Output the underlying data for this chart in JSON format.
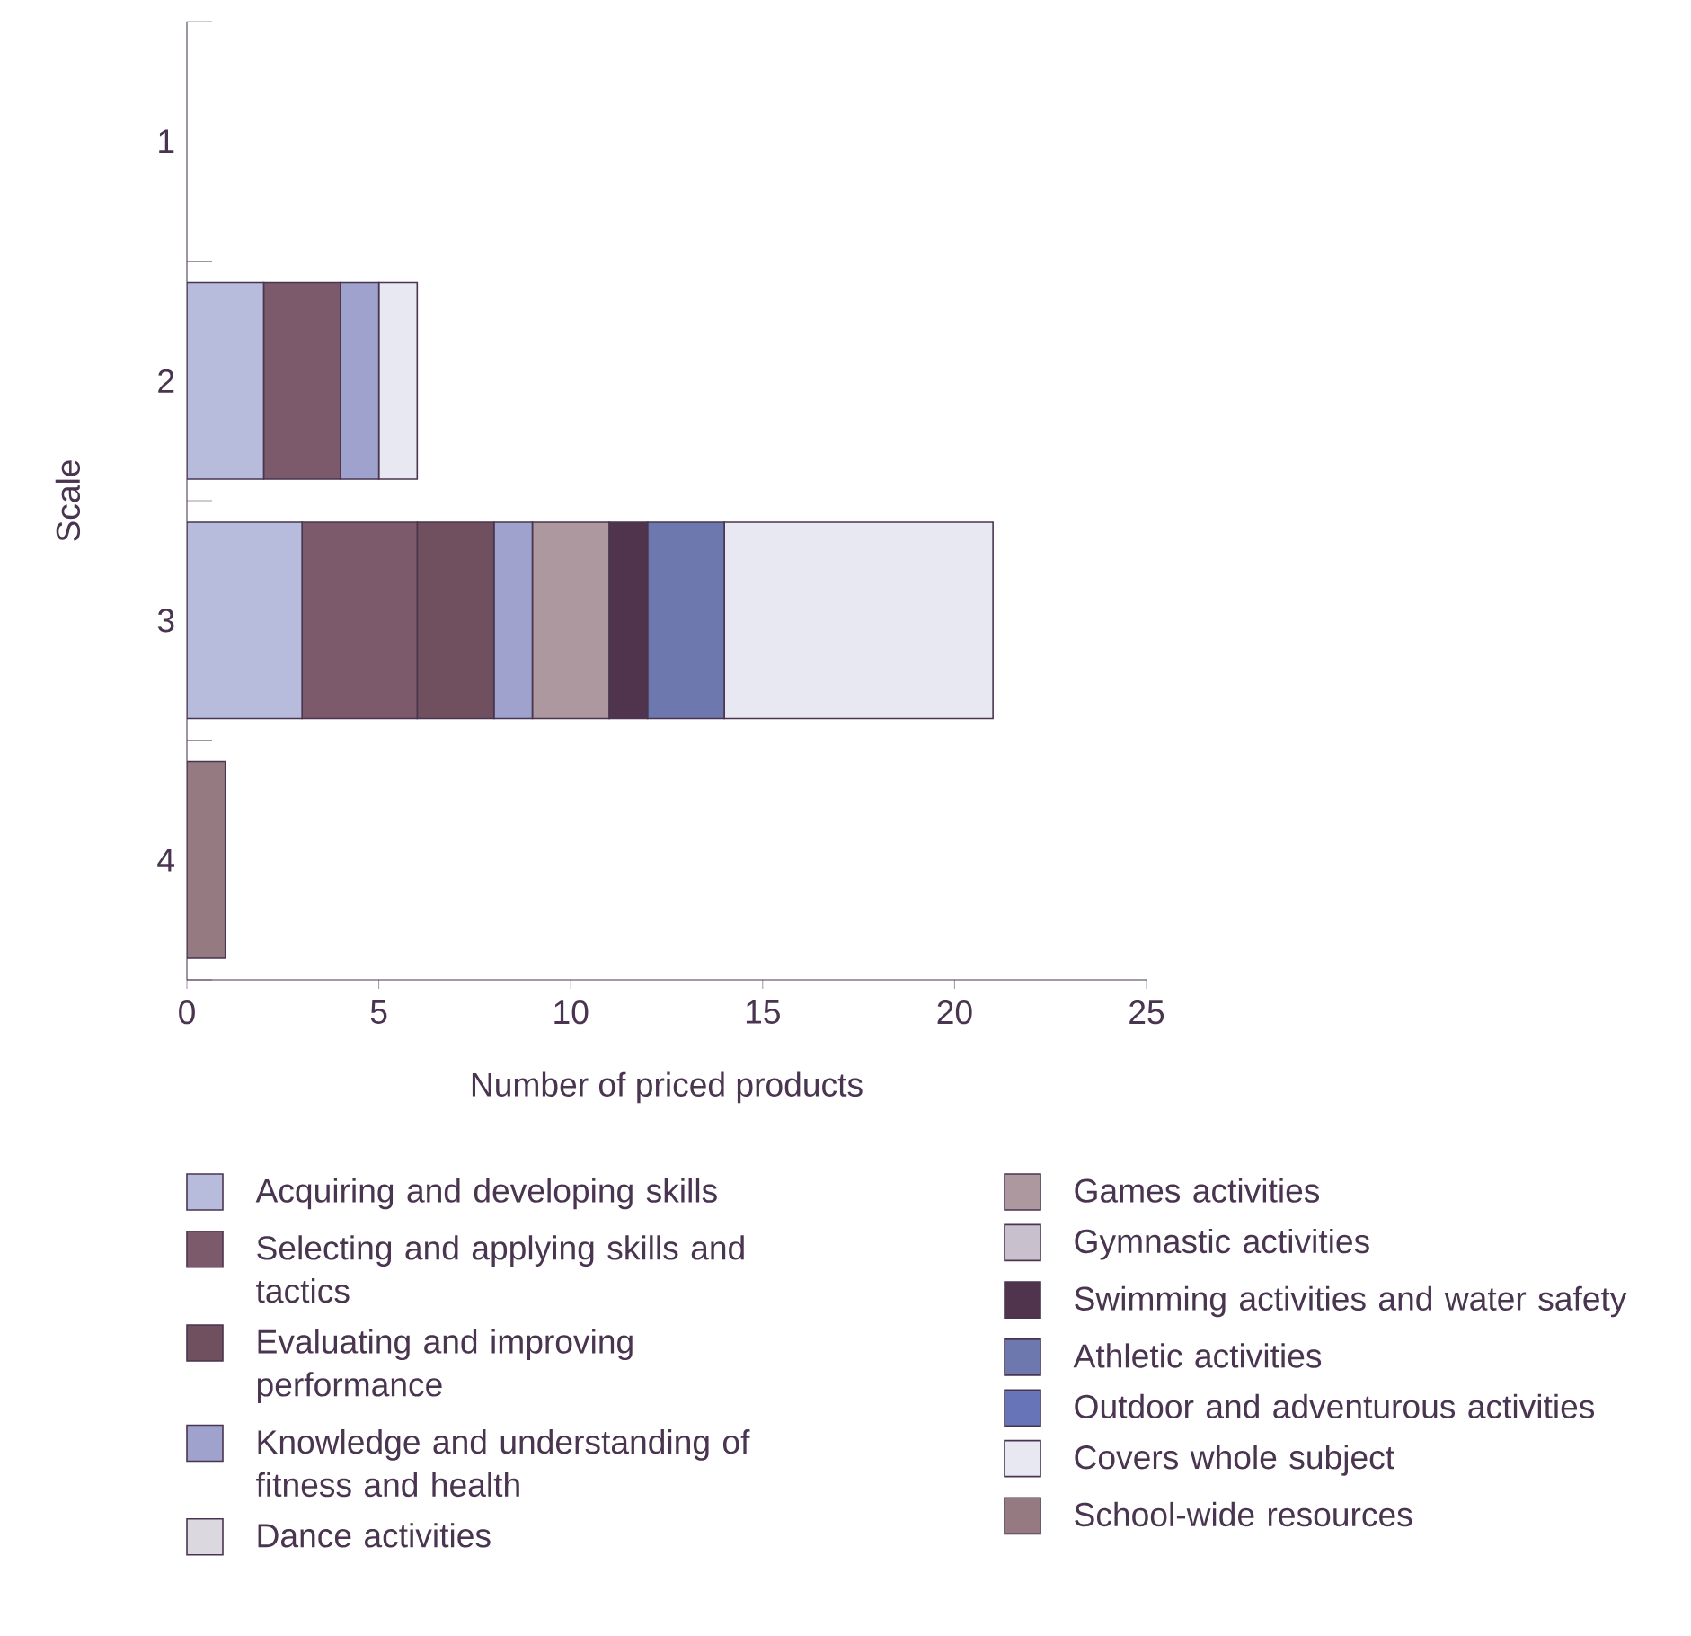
{
  "chart_data": {
    "type": "bar",
    "orientation": "horizontal",
    "stacked": true,
    "xlabel": "Number of priced products",
    "ylabel": "Scale",
    "categories": [
      "1",
      "2",
      "3",
      "4"
    ],
    "xlim": [
      0,
      25
    ],
    "xticks": [
      0,
      5,
      10,
      15,
      20,
      25
    ],
    "legend": "bottom",
    "series": [
      {
        "name": "Acquiring and developing skills",
        "color": "#b8bcdc",
        "values": [
          0,
          2,
          3,
          0
        ]
      },
      {
        "name": "Selecting and applying skills and tactics",
        "color": "#7c5a6c",
        "values": [
          0,
          2,
          3,
          0
        ]
      },
      {
        "name": "Evaluating and improving performance",
        "color": "#70505f",
        "values": [
          0,
          0,
          2,
          0
        ]
      },
      {
        "name": "Knowledge and understanding of fitness and health",
        "color": "#9ea2cc",
        "values": [
          0,
          1,
          1,
          0
        ]
      },
      {
        "name": "Dance activities",
        "color": "#dcd8e0",
        "values": [
          0,
          0,
          0,
          0
        ]
      },
      {
        "name": "Games activities",
        "color": "#ac989e",
        "values": [
          0,
          0,
          2,
          0
        ]
      },
      {
        "name": "Gymnastic activities",
        "color": "#c8c0cc",
        "values": [
          0,
          0,
          0,
          0
        ]
      },
      {
        "name": "Swimming activities and water safety",
        "color": "#50344e",
        "values": [
          0,
          0,
          1,
          0
        ]
      },
      {
        "name": "Athletic activities",
        "color": "#6c78ae",
        "values": [
          0,
          0,
          2,
          0
        ]
      },
      {
        "name": "Outdoor and adventurous activities",
        "color": "#6874b8",
        "values": [
          0,
          0,
          0,
          0
        ]
      },
      {
        "name": "Covers whole subject",
        "color": "#e8e8f2",
        "values": [
          0,
          1,
          7,
          0
        ]
      },
      {
        "name": "School-wide resources",
        "color": "#957a82",
        "values": [
          0,
          0,
          0,
          1
        ]
      }
    ]
  }
}
